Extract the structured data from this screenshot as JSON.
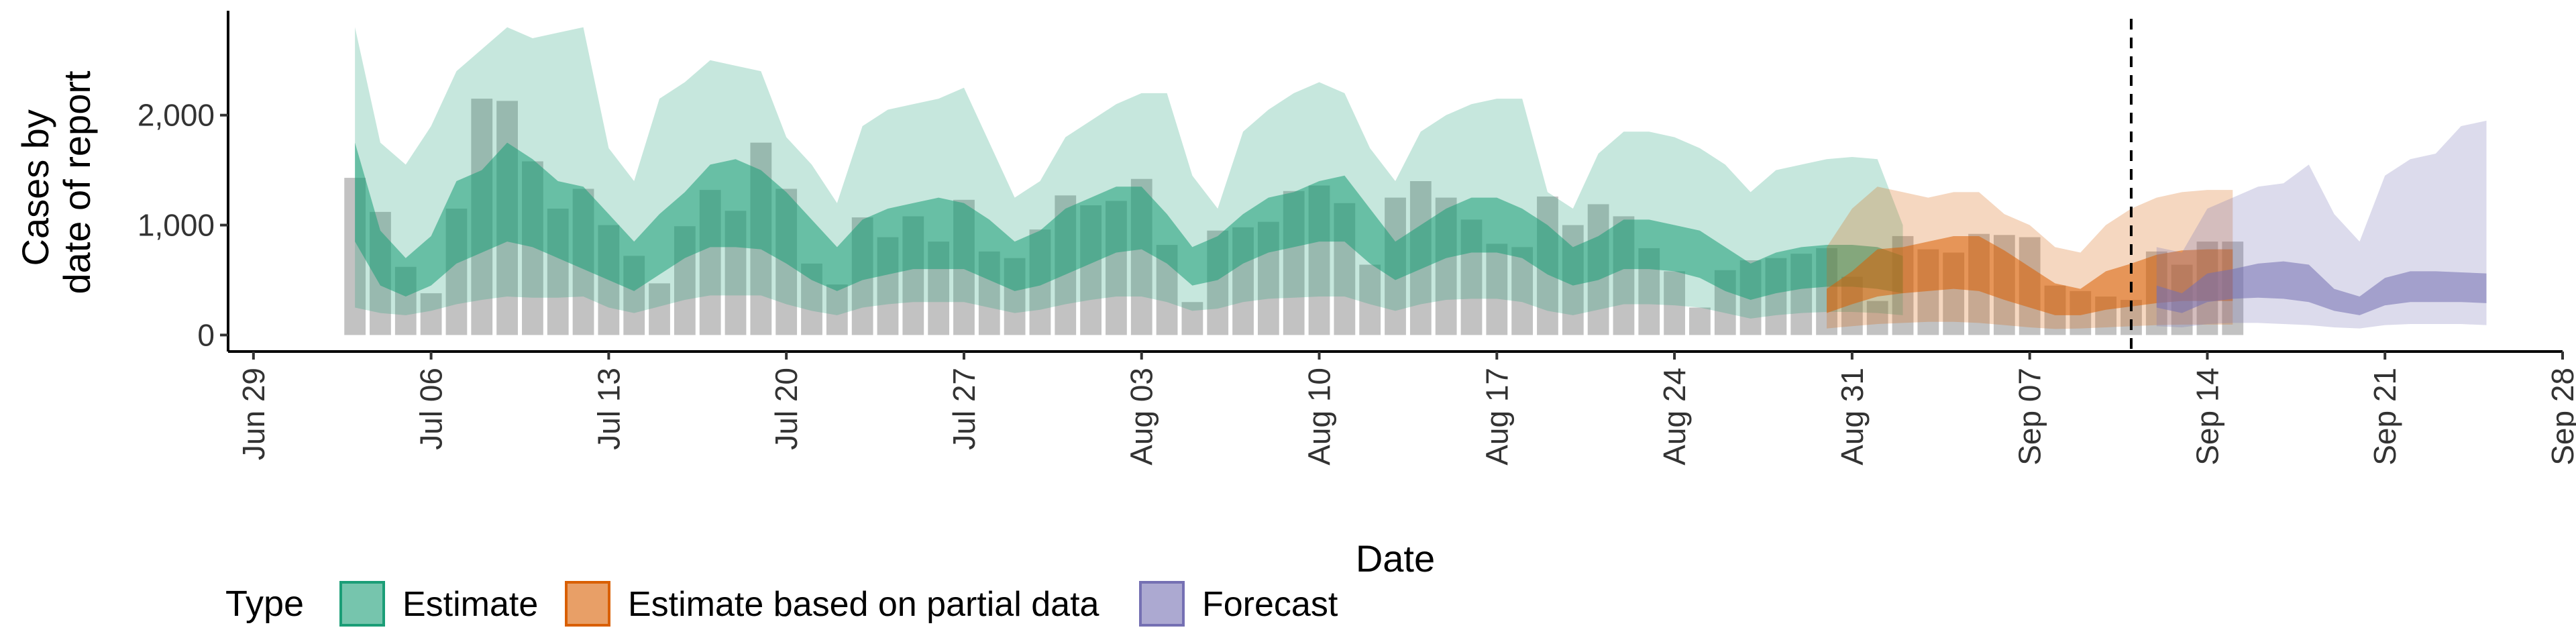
{
  "chart_data": {
    "type": "area",
    "xlabel": "Date",
    "ylabel_lines": [
      "Cases by",
      "date of report"
    ],
    "x_ticks": [
      "Jun 29",
      "Jul 06",
      "Jul 13",
      "Jul 20",
      "Jul 27",
      "Aug 03",
      "Aug 10",
      "Aug 17",
      "Aug 24",
      "Aug 31",
      "Sep 07",
      "Sep 14",
      "Sep 21",
      "Sep 28"
    ],
    "y_ticks": [
      "0",
      "1,000",
      "2,000"
    ],
    "xlim": [
      "2020-06-28",
      "2020-09-28"
    ],
    "ylim": [
      -150,
      2950
    ],
    "forecast_date": "2020-09-11",
    "legend": {
      "title": "Type",
      "position": "bottom-left",
      "entries": [
        "Estimate",
        "Estimate based on partial data",
        "Forecast"
      ]
    },
    "colors": {
      "Estimate": "#1b9e77",
      "Estimate based on partial data": "#d95f02",
      "Forecast": "#7570b3",
      "observed": "#999999"
    },
    "start_date": "2020-07-03",
    "observed_cases": [
      1430,
      1120,
      620,
      380,
      1150,
      2150,
      2130,
      1580,
      1150,
      1330,
      1000,
      720,
      470,
      990,
      1320,
      1130,
      1750,
      1330,
      650,
      460,
      1070,
      890,
      1080,
      850,
      1230,
      760,
      700,
      960,
      1270,
      1180,
      1220,
      1420,
      820,
      300,
      950,
      980,
      1030,
      1310,
      1360,
      1200,
      640,
      1250,
      1400,
      1250,
      1050,
      830,
      800,
      1260,
      1000,
      1190,
      1080,
      790,
      580,
      250,
      590,
      680,
      700,
      740,
      790,
      530,
      310,
      900,
      780,
      750,
      920,
      910,
      890,
      450,
      400,
      350,
      320,
      760,
      640,
      850,
      850
    ],
    "series": [
      {
        "name": "Estimate",
        "start": "2020-07-03",
        "upper90": [
          2800,
          1750,
          1550,
          1900,
          2400,
          2600,
          2800,
          2700,
          2750,
          2800,
          1700,
          1400,
          2150,
          2300,
          2500,
          2450,
          2400,
          1800,
          1550,
          1200,
          1900,
          2050,
          2100,
          2150,
          2250,
          1750,
          1250,
          1400,
          1800,
          1950,
          2100,
          2200,
          2200,
          1450,
          1150,
          1850,
          2050,
          2200,
          2300,
          2200,
          1700,
          1400,
          1850,
          2000,
          2100,
          2150,
          2150,
          1300,
          1150,
          1650,
          1850,
          1850,
          1800,
          1700,
          1550,
          1300,
          1500,
          1550,
          1600,
          1620,
          1600,
          1000
        ],
        "upper50": [
          1750,
          950,
          700,
          900,
          1400,
          1500,
          1750,
          1600,
          1400,
          1350,
          1100,
          850,
          1100,
          1300,
          1550,
          1600,
          1500,
          1300,
          1050,
          800,
          1050,
          1150,
          1200,
          1250,
          1200,
          1050,
          850,
          950,
          1150,
          1250,
          1350,
          1350,
          1100,
          800,
          900,
          1100,
          1250,
          1300,
          1400,
          1450,
          1150,
          850,
          1000,
          1150,
          1250,
          1250,
          1150,
          1000,
          800,
          900,
          1050,
          1050,
          1000,
          950,
          800,
          650,
          750,
          800,
          820,
          820,
          800,
          720
        ],
        "lower50": [
          850,
          450,
          350,
          450,
          650,
          750,
          850,
          800,
          700,
          600,
          500,
          400,
          550,
          700,
          800,
          800,
          780,
          650,
          500,
          400,
          500,
          550,
          600,
          600,
          600,
          500,
          400,
          450,
          550,
          650,
          750,
          780,
          650,
          450,
          500,
          650,
          750,
          800,
          850,
          850,
          650,
          500,
          600,
          700,
          750,
          750,
          700,
          550,
          450,
          500,
          600,
          600,
          580,
          520,
          400,
          320,
          380,
          420,
          440,
          440,
          420,
          380
        ],
        "lower90": [
          250,
          200,
          180,
          220,
          280,
          320,
          350,
          340,
          340,
          350,
          250,
          200,
          260,
          320,
          360,
          360,
          360,
          280,
          220,
          180,
          250,
          280,
          300,
          300,
          300,
          250,
          200,
          230,
          280,
          320,
          350,
          350,
          300,
          220,
          240,
          300,
          330,
          340,
          350,
          350,
          280,
          220,
          280,
          320,
          330,
          330,
          300,
          220,
          180,
          230,
          280,
          280,
          270,
          250,
          200,
          150,
          180,
          200,
          210,
          210,
          200,
          180
        ]
      },
      {
        "name": "Estimate based on partial data",
        "start": "2020-08-30",
        "upper90": [
          800,
          1150,
          1350,
          1300,
          1250,
          1300,
          1300,
          1100,
          1000,
          800,
          750,
          1000,
          1150,
          1250,
          1300,
          1320,
          1320
        ],
        "upper50": [
          420,
          580,
          780,
          800,
          850,
          900,
          900,
          770,
          620,
          470,
          420,
          580,
          650,
          730,
          770,
          780,
          780
        ],
        "lower50": [
          200,
          280,
          350,
          380,
          400,
          420,
          400,
          320,
          250,
          180,
          180,
          230,
          260,
          290,
          310,
          310,
          310
        ],
        "lower90": [
          60,
          80,
          100,
          110,
          120,
          120,
          110,
          90,
          70,
          55,
          60,
          70,
          80,
          90,
          95,
          95,
          95
        ]
      },
      {
        "name": "Forecast",
        "start": "2020-09-12",
        "upper90": [
          800,
          750,
          1150,
          1250,
          1350,
          1380,
          1550,
          1100,
          850,
          1450,
          1600,
          1650,
          1900,
          1950
        ],
        "upper50": [
          450,
          380,
          560,
          600,
          650,
          670,
          640,
          420,
          350,
          520,
          580,
          580,
          570,
          560
        ],
        "lower50": [
          250,
          200,
          300,
          330,
          340,
          330,
          300,
          220,
          180,
          270,
          300,
          300,
          300,
          290
        ],
        "lower90": [
          80,
          70,
          100,
          110,
          110,
          100,
          90,
          70,
          60,
          90,
          100,
          100,
          100,
          90
        ]
      }
    ]
  }
}
